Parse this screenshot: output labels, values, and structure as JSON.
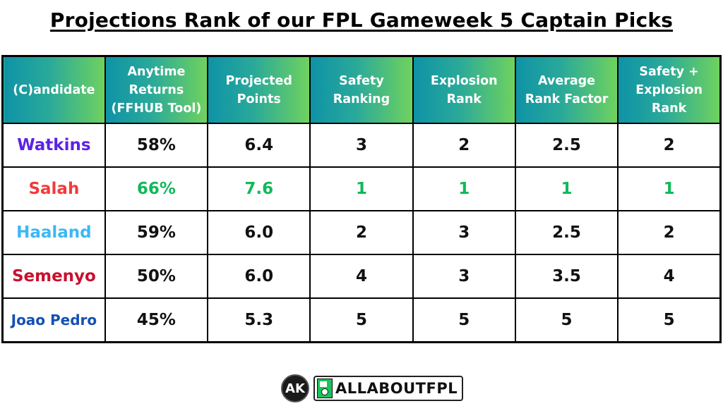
{
  "title": "Projections Rank of our FPL Gameweek 5 Captain Picks",
  "table": {
    "headers": [
      [
        "(C)andidate"
      ],
      [
        "Anytime",
        "Returns",
        "(FFHUB Tool)"
      ],
      [
        "Projected",
        "Points"
      ],
      [
        "Safety",
        "Ranking"
      ],
      [
        "Explosion",
        "Rank"
      ],
      [
        "Average",
        "Rank Factor"
      ],
      [
        "Safety +",
        "Explosion",
        "Rank"
      ]
    ],
    "header_labels": [
      "(C)andidate",
      "Anytime Returns (FFHUB Tool)",
      "Projected Points",
      "Safety Ranking",
      "Explosion Rank",
      "Average Rank Factor",
      "Safety + Explosion Rank"
    ],
    "rows": [
      {
        "name": "Watkins",
        "name_color": "#5b22e6",
        "anytime": "58%",
        "projected": "6.4",
        "safety": "3",
        "explosion": "2",
        "average": "2.5",
        "combined": "2",
        "highlight": false
      },
      {
        "name": "Salah",
        "name_color": "#f23b3b",
        "anytime": "66%",
        "projected": "7.6",
        "safety": "1",
        "explosion": "1",
        "average": "1",
        "combined": "1",
        "highlight": true
      },
      {
        "name": "Haaland",
        "name_color": "#3db8f5",
        "anytime": "59%",
        "projected": "6.0",
        "safety": "2",
        "explosion": "3",
        "average": "2.5",
        "combined": "2",
        "highlight": false
      },
      {
        "name": "Semenyo",
        "name_color": "#c8102e",
        "anytime": "50%",
        "projected": "6.0",
        "safety": "4",
        "explosion": "3",
        "average": "3.5",
        "combined": "4",
        "highlight": false
      },
      {
        "name": "Joao Pedro",
        "name_color": "#1450b4",
        "anytime": "45%",
        "projected": "5.3",
        "safety": "5",
        "explosion": "5",
        "average": "5",
        "combined": "5",
        "highlight": false
      }
    ]
  },
  "colors": {
    "header_gradient_start": "#0e93a6",
    "header_gradient_end": "#6fd25e",
    "best_value": "#12b85a"
  },
  "footer": {
    "logo_monogram": "AK",
    "brand": "ALLABOUTFPL"
  },
  "chart_data": {
    "type": "table",
    "title": "Projections Rank of our FPL Gameweek 5 Captain Picks",
    "columns": [
      "(C)andidate",
      "Anytime Returns (FFHUB Tool)",
      "Projected Points",
      "Safety Ranking",
      "Explosion Rank",
      "Average Rank Factor",
      "Safety + Explosion Rank"
    ],
    "rows": [
      [
        "Watkins",
        "58%",
        6.4,
        3,
        2,
        2.5,
        2
      ],
      [
        "Salah",
        "66%",
        7.6,
        1,
        1,
        1,
        1
      ],
      [
        "Haaland",
        "59%",
        6.0,
        2,
        3,
        2.5,
        2
      ],
      [
        "Semenyo",
        "50%",
        6.0,
        4,
        3,
        3.5,
        4
      ],
      [
        "Joao Pedro",
        "45%",
        5.3,
        5,
        5,
        5,
        5
      ]
    ],
    "highlighted_row": "Salah"
  }
}
